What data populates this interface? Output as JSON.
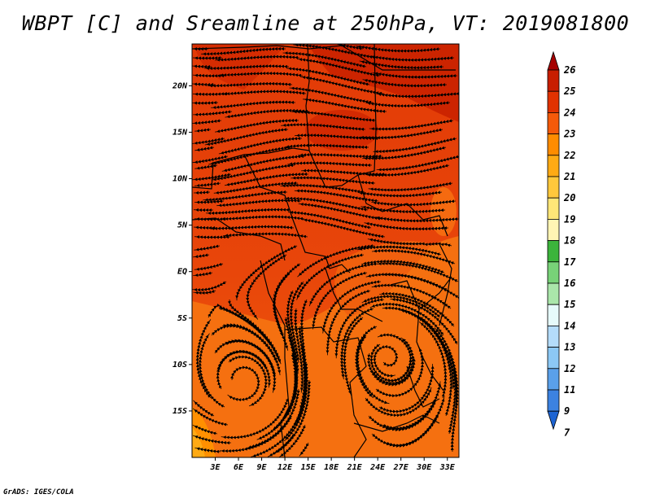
{
  "title": "WBPT [C] and Sreamline at 250hPa, VT: 2019081800",
  "footer": "GrADS: IGES/COLA",
  "map": {
    "lat_labels": [
      "20N",
      "15N",
      "10N",
      "5N",
      "EQ",
      "5S",
      "10S",
      "15S"
    ],
    "lat_values": [
      20,
      15,
      10,
      5,
      0,
      -5,
      -10,
      -15
    ],
    "lon_labels": [
      "3E",
      "6E",
      "9E",
      "12E",
      "15E",
      "18E",
      "21E",
      "24E",
      "27E",
      "30E",
      "33E"
    ],
    "lon_values": [
      3,
      6,
      9,
      12,
      15,
      18,
      21,
      24,
      27,
      30,
      33
    ],
    "lat_range": [
      -20,
      24.5
    ],
    "lon_range": [
      0,
      34.5
    ]
  },
  "colorbar": {
    "labels": [
      "26",
      "25",
      "24",
      "23",
      "22",
      "21",
      "20",
      "19",
      "18",
      "17",
      "16",
      "15",
      "14",
      "13",
      "12",
      "11",
      "9",
      "7"
    ],
    "colors": [
      "#a50000",
      "#c81e00",
      "#e13200",
      "#f55a0a",
      "#ff8c00",
      "#ffaa14",
      "#ffc83c",
      "#ffe678",
      "#fff5b4",
      "#3cb43c",
      "#78d278",
      "#aae6aa",
      "#e6fafa",
      "#b4dcfa",
      "#8cc8f5",
      "#5aa0ea",
      "#3c82e1",
      "#1e64d2"
    ]
  }
}
